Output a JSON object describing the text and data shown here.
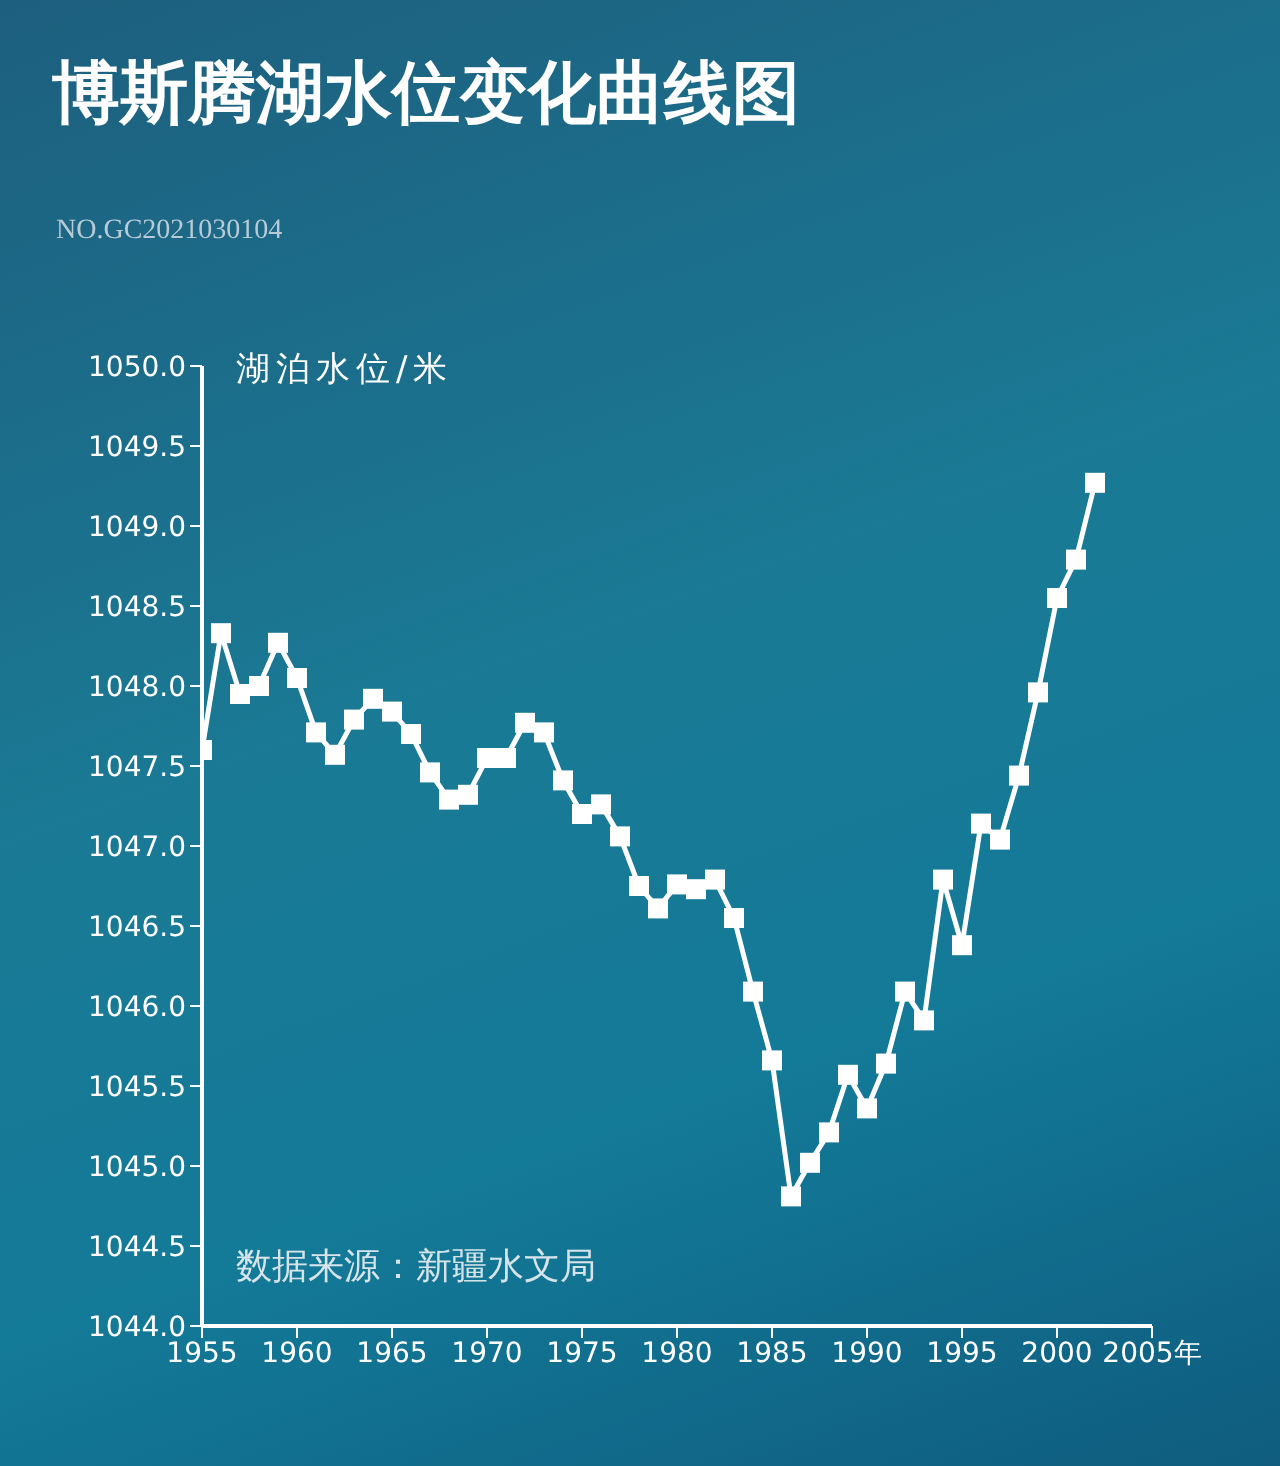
{
  "chart_data": {
    "type": "line",
    "title": "博斯腾湖水位变化曲线图",
    "ylabel": "湖泊水位/米",
    "annotations": [
      "NO.GC2021030104",
      "数据来源：新疆水文局"
    ],
    "x": [
      1955,
      1956,
      1957,
      1958,
      1959,
      1960,
      1961,
      1962,
      1963,
      1964,
      1965,
      1966,
      1967,
      1968,
      1969,
      1970,
      1971,
      1972,
      1973,
      1974,
      1975,
      1976,
      1977,
      1978,
      1979,
      1980,
      1981,
      1982,
      1983,
      1984,
      1985,
      1986,
      1987,
      1988,
      1989,
      1990,
      1991,
      1992,
      1993,
      1994,
      1995,
      1996,
      1997,
      1998,
      1999,
      2000,
      2001,
      2002
    ],
    "series": [
      {
        "color": "#ffffff",
        "values": [
          1047.6,
          1048.33,
          1047.95,
          1048.0,
          1048.27,
          1048.05,
          1047.71,
          1047.57,
          1047.79,
          1047.92,
          1047.84,
          1047.7,
          1047.46,
          1047.29,
          1047.32,
          1047.55,
          1047.55,
          1047.77,
          1047.71,
          1047.41,
          1047.2,
          1047.26,
          1047.06,
          1046.75,
          1046.61,
          1046.76,
          1046.73,
          1046.79,
          1046.55,
          1046.09,
          1045.66,
          1044.81,
          1045.02,
          1045.21,
          1045.57,
          1045.36,
          1045.64,
          1046.09,
          1045.91,
          1046.79,
          1046.38,
          1047.14,
          1047.04,
          1047.44,
          1047.96,
          1048.55,
          1048.79,
          1049.27
        ]
      }
    ],
    "xlim": [
      1955,
      2005
    ],
    "xticks": [
      1955,
      1960,
      1965,
      1970,
      1975,
      1980,
      1985,
      1990,
      1995,
      2000,
      {
        "value": 2005,
        "label": "2005年"
      }
    ],
    "ylim": [
      1044,
      1050
    ],
    "yticks": [
      {
        "value": 1044,
        "label": "1044.0"
      },
      {
        "value": 1044.5,
        "label": "1044.5"
      },
      {
        "value": 1045,
        "label": "1045.0"
      },
      {
        "value": 1045.5,
        "label": "1045.5"
      },
      {
        "value": 1046,
        "label": "1046.0"
      },
      {
        "value": 1046.5,
        "label": "1046.5"
      },
      {
        "value": 1047,
        "label": "1047.0"
      },
      {
        "value": 1047.5,
        "label": "1047.5"
      },
      {
        "value": 1048,
        "label": "1048.0"
      },
      {
        "value": 1048.5,
        "label": "1048.5"
      },
      {
        "value": 1049,
        "label": "1049.0"
      },
      {
        "value": 1049.5,
        "label": "1049.5"
      },
      {
        "value": 1050,
        "label": "1050.0"
      }
    ],
    "grid": false,
    "legend": false,
    "marker": "square",
    "line_style": "solid"
  }
}
